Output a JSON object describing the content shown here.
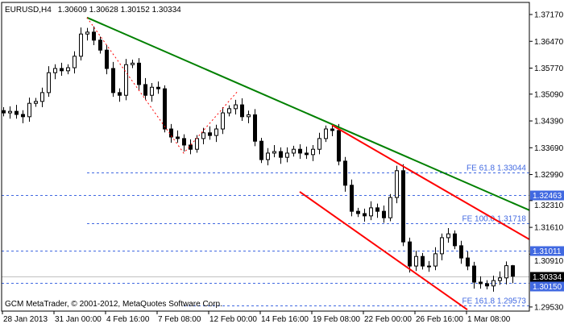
{
  "header": {
    "symbol": "EURUSD,H4",
    "ohlc": "1.30609 1.30628 1.30152 1.30334"
  },
  "footer": {
    "copyright": "GCM MetaTrader, © 2001-2012, MetaQuotes Software Corp."
  },
  "colors": {
    "trendline": "#008000",
    "channel": "#ff0000",
    "zigzag": "#ff0000",
    "levels": "#4169e1",
    "bull_body": "#ffffff",
    "bear_body": "#000000",
    "price_line": "#c0c0c0"
  },
  "chart_data": {
    "type": "candlestick",
    "title": "EURUSD,H4",
    "ylim": [
      1.2953,
      1.3717
    ],
    "y_ticks": [
      "1.37170",
      "1.36470",
      "1.35770",
      "1.35090",
      "1.34390",
      "1.33690",
      "1.32990",
      "1.32310",
      "1.31610",
      "1.30910",
      "1.29530"
    ],
    "x_ticks": [
      {
        "index": 0,
        "label": "28 Jan 2013"
      },
      {
        "index": 8,
        "label": "31 Jan 00:00"
      },
      {
        "index": 16,
        "label": "4 Feb 16:00"
      },
      {
        "index": 24,
        "label": "7 Feb 08:00"
      },
      {
        "index": 32,
        "label": "12 Feb 00:00"
      },
      {
        "index": 40,
        "label": "14 Feb 16:00"
      },
      {
        "index": 48,
        "label": "19 Feb 08:00"
      },
      {
        "index": 56,
        "label": "22 Feb 00:00"
      },
      {
        "index": 64,
        "label": "26 Feb 16:00"
      },
      {
        "index": 72,
        "label": "1 Mar 08:00"
      }
    ],
    "closes": [
      1.346,
      1.3464,
      1.3456,
      1.345,
      1.3485,
      1.349,
      1.3513,
      1.3565,
      1.3576,
      1.357,
      1.3578,
      1.3608,
      1.3666,
      1.3671,
      1.365,
      1.3624,
      1.3576,
      1.3513,
      1.3506,
      1.3586,
      1.359,
      1.3534,
      1.3506,
      1.3527,
      1.3523,
      1.3418,
      1.3397,
      1.3393,
      1.3376,
      1.3365,
      1.3393,
      1.3408,
      1.3401,
      1.3418,
      1.346,
      1.3471,
      1.3481,
      1.345,
      1.3455,
      1.3386,
      1.3338,
      1.3355,
      1.3359,
      1.3344,
      1.3355,
      1.3365,
      1.3355,
      1.3351,
      1.3365,
      1.3393,
      1.3418,
      1.3414,
      1.3334,
      1.3271,
      1.3203,
      1.3197,
      1.3191,
      1.3212,
      1.3203,
      1.3186,
      1.3239,
      1.3309,
      1.3123,
      1.306,
      1.3085,
      1.306,
      1.306,
      1.3092,
      1.3134,
      1.3144,
      1.3113,
      1.3081,
      1.306,
      1.3018,
      1.3014,
      1.3008,
      1.3022,
      1.3029,
      1.30609,
      1.30334
    ],
    "last_candle": {
      "open": 1.30609,
      "high": 1.30628,
      "low": 1.30152,
      "close": 1.30334
    },
    "trendlines": [
      {
        "color": "trendline",
        "from": [
          13,
          1.3709
        ],
        "to": [
          81.6,
          1.3206
        ]
      },
      {
        "color": "channel",
        "from": [
          51,
          1.3428
        ],
        "to": [
          81.6,
          1.313
        ]
      },
      {
        "color": "channel",
        "from": [
          46,
          1.3254
        ],
        "to": [
          72,
          1.2946
        ]
      }
    ],
    "zigzag": [
      [
        13,
        1.3709
      ],
      [
        28,
        1.3355
      ],
      [
        36.5,
        1.3519
      ]
    ],
    "levels": [
      {
        "price": 1.33044,
        "label": "FE 61.8 1.33044",
        "from_index": 13
      },
      {
        "price": 1.32463,
        "tag": "1.32463",
        "from_index": 0
      },
      {
        "price": 1.31718,
        "label": "FE 100.0 1.31718",
        "from_index": 13
      },
      {
        "price": 1.31011,
        "tag": "1.31011",
        "from_index": 0
      },
      {
        "price": 1.3015,
        "tag": "1.30150",
        "from_index": 0
      },
      {
        "price": 1.29573,
        "label": "FE 161.8 1.29573",
        "from_index": 28
      }
    ],
    "current_price": "1.30334"
  }
}
